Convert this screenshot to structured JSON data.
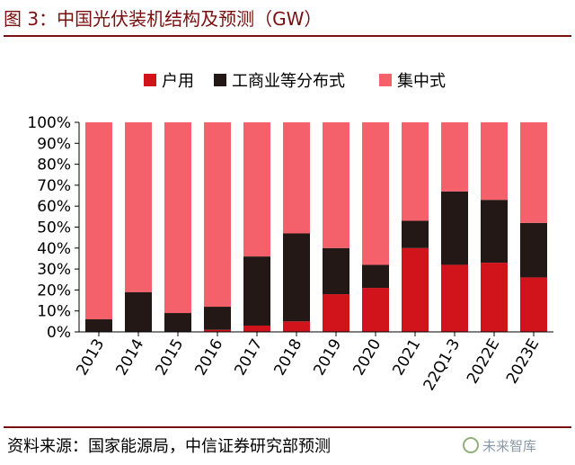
{
  "header": {
    "title": "图 3：中国光伏装机结构及预测（GW）"
  },
  "footer": {
    "source": "资料来源：国家能源局，中信证券研究部预测"
  },
  "watermark": {
    "text": "未来智库",
    "icon": "sun-logo-icon"
  },
  "colors": {
    "household": "#d1141b",
    "distributed": "#231815",
    "centralized": "#f4616b",
    "title": "#7a0f0f"
  },
  "chart_data": {
    "type": "bar",
    "stacked": true,
    "categories": [
      "2013",
      "2014",
      "2015",
      "2016",
      "2017",
      "2018",
      "2019",
      "2020",
      "2021",
      "22Q1-3",
      "2022E",
      "2023E"
    ],
    "series": [
      {
        "name": "户用",
        "values": [
          0,
          0,
          0,
          1,
          3,
          5,
          18,
          21,
          40,
          32,
          33,
          26
        ]
      },
      {
        "name": "工商业等分布式",
        "values": [
          6,
          19,
          9,
          11,
          33,
          42,
          22,
          11,
          13,
          35,
          30,
          26
        ]
      },
      {
        "name": "集中式",
        "values": [
          94,
          81,
          91,
          88,
          64,
          53,
          60,
          68,
          47,
          33,
          37,
          48
        ]
      }
    ],
    "ylim": [
      0,
      100
    ],
    "y_ticks": [
      "0%",
      "10%",
      "20%",
      "30%",
      "40%",
      "50%",
      "60%",
      "70%",
      "80%",
      "90%",
      "100%"
    ],
    "grid": false,
    "legend_position": "top"
  }
}
